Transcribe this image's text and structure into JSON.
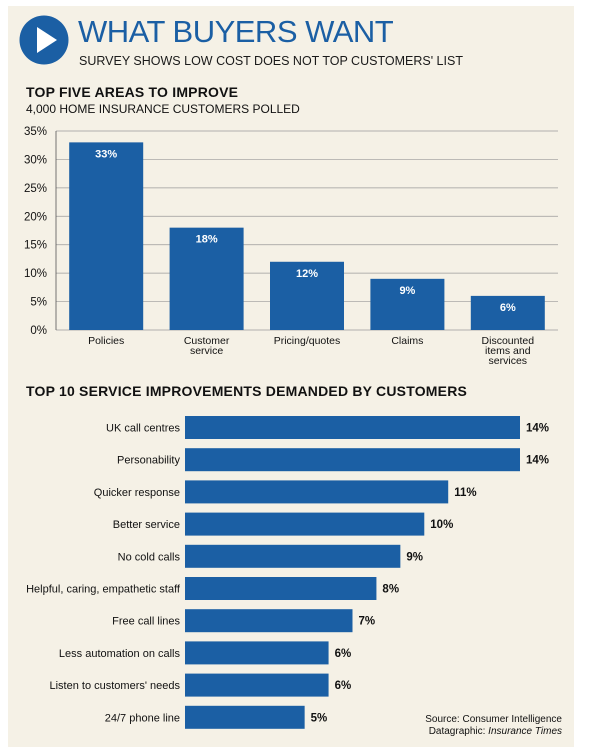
{
  "header": {
    "title": "WHAT BUYERS WANT",
    "subtitle": "SURVEY SHOWS LOW COST DOES NOT TOP CUSTOMERS' LIST"
  },
  "section1": {
    "title": "TOP FIVE AREAS TO IMPROVE",
    "subtitle": "4,000 HOME INSURANCE CUSTOMERS POLLED"
  },
  "section2": {
    "title": "TOP 10 SERVICE IMPROVEMENTS DEMANDED BY CUSTOMERS"
  },
  "source": {
    "line1": "Source: Consumer Intelligence",
    "line2_prefix": "Datagraphic: ",
    "line2_pub": "Insurance Times"
  },
  "colors": {
    "bar": "#1b5fa4",
    "accent": "#1b5fa4",
    "panel": "#f5f1e6"
  },
  "icons": {
    "header": "play-icon"
  },
  "chart_data": [
    {
      "type": "bar",
      "title": "TOP FIVE AREAS TO IMPROVE",
      "subtitle": "4,000 HOME INSURANCE CUSTOMERS POLLED",
      "categories": [
        [
          "Policies"
        ],
        [
          "Customer",
          "service"
        ],
        [
          "Pricing/quotes"
        ],
        [
          "Claims"
        ],
        [
          "Discounted",
          "items and",
          "services"
        ]
      ],
      "values": [
        33,
        18,
        12,
        9,
        6
      ],
      "value_labels": [
        "33%",
        "18%",
        "12%",
        "9%",
        "6%"
      ],
      "ylim": [
        0,
        35
      ],
      "yticks": [
        "0%",
        "5%",
        "10%",
        "15%",
        "20%",
        "25%",
        "30%",
        "35%"
      ],
      "grid": true
    },
    {
      "type": "bar",
      "orientation": "horizontal",
      "title": "TOP 10 SERVICE IMPROVEMENTS DEMANDED BY CUSTOMERS",
      "categories": [
        "UK call centres",
        "Personability",
        "Quicker response",
        "Better service",
        "No cold calls",
        "Helpful, caring, empathetic staff",
        "Free call lines",
        "Less automation on calls",
        "Listen to customers' needs",
        "24/7 phone line"
      ],
      "values": [
        14,
        14,
        11,
        10,
        9,
        8,
        7,
        6,
        6,
        5
      ],
      "value_labels": [
        "14%",
        "14%",
        "11%",
        "10%",
        "9%",
        "8%",
        "7%",
        "6%",
        "6%",
        "5%"
      ]
    }
  ]
}
